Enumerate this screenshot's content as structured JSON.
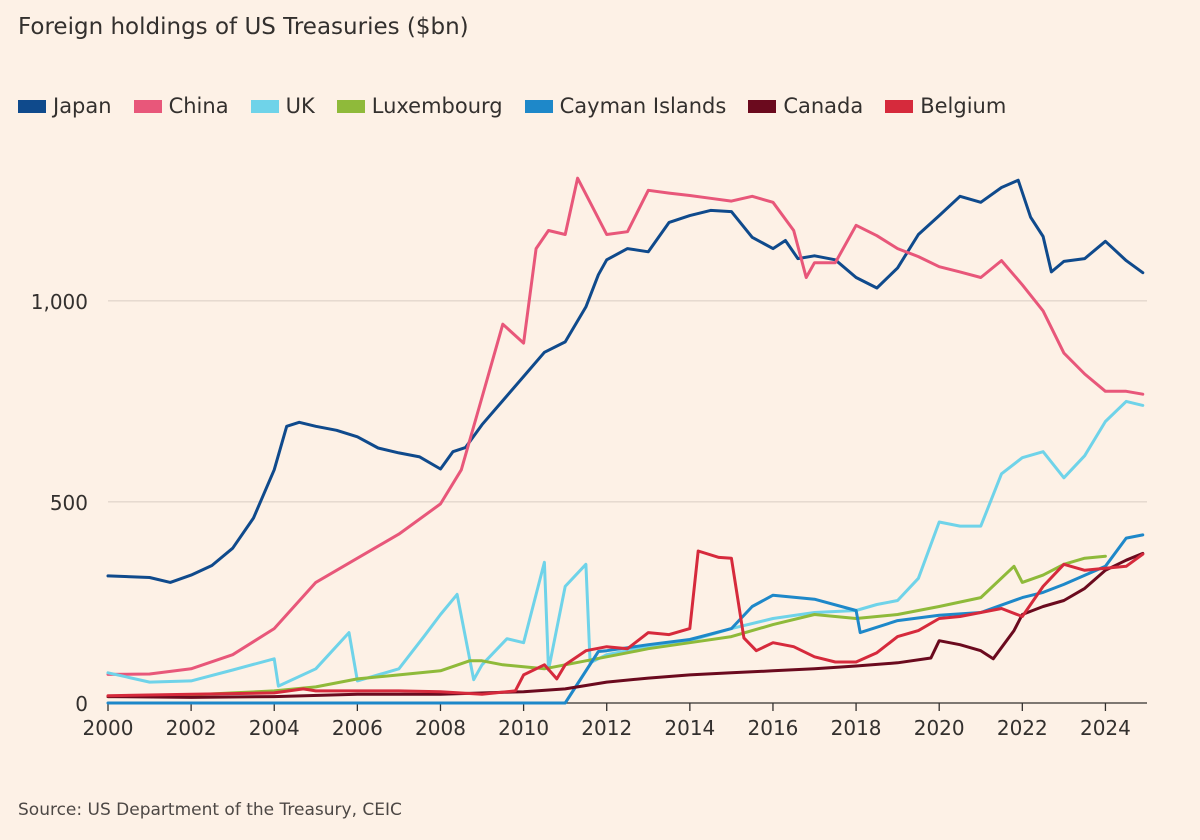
{
  "title": "Foreign holdings of US Treasuries ($bn)",
  "source": "Source: US Department of the Treasury, CEIC",
  "chart_data": {
    "type": "line",
    "title": "Foreign holdings of US Treasuries ($bn)",
    "xlabel": "",
    "ylabel": "",
    "xlim": [
      2000,
      2025
    ],
    "ylim": [
      0,
      1400
    ],
    "x_ticks": [
      "2000",
      "2002",
      "2004",
      "2006",
      "2008",
      "2010",
      "2012",
      "2014",
      "2016",
      "2018",
      "2020",
      "2022",
      "2024"
    ],
    "y_ticks": [
      "0",
      "500",
      "1,000"
    ],
    "grid": true,
    "legend_position": "top-left",
    "series": [
      {
        "name": "Japan",
        "color": "#0f4a8c",
        "x": [
          2000,
          2001,
          2001.5,
          2002,
          2002.5,
          2003,
          2003.5,
          2004,
          2004.3,
          2004.6,
          2005,
          2005.5,
          2006,
          2006.5,
          2007,
          2007.5,
          2008,
          2008.3,
          2008.6,
          2009,
          2009.5,
          2010,
          2010.5,
          2011,
          2011.5,
          2011.8,
          2012,
          2012.5,
          2013,
          2013.5,
          2014,
          2014.5,
          2015,
          2015.5,
          2016,
          2016.3,
          2016.6,
          2017,
          2017.5,
          2018,
          2018.5,
          2019,
          2019.5,
          2020,
          2020.5,
          2021,
          2021.5,
          2021.9,
          2022.2,
          2022.5,
          2022.7,
          2023,
          2023.5,
          2024,
          2024.5,
          2024.9
        ],
        "values": [
          316,
          312,
          300,
          318,
          342,
          385,
          460,
          580,
          688,
          698,
          688,
          678,
          662,
          634,
          622,
          612,
          582,
          625,
          635,
          692,
          752,
          812,
          872,
          898,
          985,
          1065,
          1102,
          1130,
          1122,
          1195,
          1212,
          1225,
          1222,
          1158,
          1130,
          1150,
          1105,
          1112,
          1102,
          1058,
          1032,
          1082,
          1165,
          1212,
          1260,
          1245,
          1282,
          1300,
          1208,
          1160,
          1072,
          1098,
          1105,
          1148,
          1100,
          1070
        ]
      },
      {
        "name": "China",
        "color": "#e8577a",
        "x": [
          2000,
          2001,
          2002,
          2003,
          2004,
          2005,
          2006,
          2007,
          2008,
          2008.5,
          2009,
          2009.5,
          2010,
          2010.3,
          2010.6,
          2011,
          2011.3,
          2011.6,
          2012,
          2012.5,
          2013,
          2013.5,
          2014,
          2014.5,
          2015,
          2015.5,
          2016,
          2016.5,
          2016.8,
          2017,
          2017.5,
          2018,
          2018.5,
          2019,
          2019.5,
          2020,
          2020.5,
          2021,
          2021.5,
          2022,
          2022.5,
          2023,
          2023.5,
          2024,
          2024.5,
          2024.9
        ],
        "values": [
          71,
          72,
          85,
          120,
          185,
          300,
          360,
          420,
          495,
          580,
          760,
          942,
          895,
          1130,
          1175,
          1165,
          1305,
          1245,
          1165,
          1172,
          1275,
          1268,
          1262,
          1255,
          1248,
          1260,
          1245,
          1175,
          1058,
          1095,
          1095,
          1188,
          1162,
          1130,
          1110,
          1085,
          1072,
          1058,
          1100,
          1040,
          975,
          870,
          818,
          775,
          775,
          768
        ]
      },
      {
        "name": "UK",
        "color": "#6fd3e9",
        "x": [
          2000,
          2001,
          2002,
          2003,
          2004,
          2004.1,
          2005,
          2005.8,
          2006,
          2007,
          2007.6,
          2008,
          2008.4,
          2008.8,
          2009,
          2009.6,
          2010,
          2010.5,
          2010.6,
          2011,
          2011.5,
          2011.6,
          2012,
          2013,
          2014,
          2015,
          2016,
          2017,
          2018,
          2018.5,
          2019,
          2019.5,
          2020,
          2020.5,
          2021,
          2021.5,
          2022,
          2022.5,
          2023,
          2023.5,
          2024,
          2024.5,
          2024.9
        ],
        "values": [
          75,
          52,
          55,
          82,
          110,
          42,
          85,
          175,
          55,
          85,
          165,
          220,
          270,
          58,
          95,
          160,
          150,
          350,
          82,
          290,
          345,
          100,
          120,
          140,
          155,
          185,
          210,
          225,
          230,
          245,
          255,
          310,
          450,
          440,
          440,
          570,
          610,
          625,
          560,
          615,
          700,
          750,
          740
        ]
      },
      {
        "name": "Luxembourg",
        "color": "#8fba3a",
        "x": [
          2000,
          2001,
          2002,
          2003,
          2004,
          2005,
          2006,
          2007,
          2008,
          2008.7,
          2009,
          2009.5,
          2010,
          2010.5,
          2011,
          2012,
          2013,
          2014,
          2015,
          2016,
          2017,
          2018,
          2019,
          2020,
          2021,
          2021.8,
          2022,
          2022.5,
          2023,
          2023.5,
          2024
        ],
        "values": [
          16,
          18,
          20,
          25,
          30,
          40,
          60,
          70,
          80,
          105,
          105,
          95,
          90,
          85,
          95,
          115,
          135,
          150,
          165,
          195,
          220,
          210,
          220,
          240,
          262,
          340,
          300,
          318,
          345,
          360,
          365
        ]
      },
      {
        "name": "Cayman Islands",
        "color": "#1e88c9",
        "x": [
          2000,
          2006,
          2008,
          2010,
          2011,
          2011.8,
          2012,
          2013,
          2014,
          2015,
          2015.5,
          2016,
          2017,
          2018,
          2018.1,
          2019,
          2020,
          2021,
          2022,
          2022.5,
          2023,
          2024,
          2024.5,
          2024.9
        ],
        "values": [
          0,
          0,
          0,
          0,
          0,
          128,
          130,
          145,
          158,
          185,
          240,
          268,
          258,
          230,
          175,
          205,
          218,
          225,
          262,
          275,
          295,
          340,
          410,
          418
        ]
      },
      {
        "name": "Canada",
        "color": "#6b0a1e",
        "x": [
          2000,
          2002,
          2004,
          2006,
          2008,
          2010,
          2011,
          2012,
          2013,
          2014,
          2015,
          2016,
          2017,
          2018,
          2019,
          2019.8,
          2020,
          2020.5,
          2021,
          2021.3,
          2021.8,
          2022,
          2022.5,
          2023,
          2023.5,
          2024,
          2024.5,
          2024.9
        ],
        "values": [
          16,
          14,
          16,
          22,
          22,
          28,
          35,
          52,
          62,
          70,
          75,
          80,
          85,
          92,
          100,
          112,
          155,
          145,
          130,
          110,
          180,
          220,
          240,
          255,
          285,
          330,
          355,
          372
        ]
      },
      {
        "name": "Belgium",
        "color": "#d62a3c",
        "x": [
          2000,
          2002,
          2004,
          2004.7,
          2005,
          2006,
          2007,
          2008,
          2009,
          2009.8,
          2010,
          2010.5,
          2010.8,
          2011,
          2011.5,
          2012,
          2012.5,
          2013,
          2013.5,
          2014,
          2014.2,
          2014.7,
          2015,
          2015.3,
          2015.6,
          2016,
          2016.5,
          2017,
          2017.5,
          2018,
          2018.5,
          2019,
          2019.5,
          2020,
          2020.5,
          2021,
          2021.5,
          2022,
          2022.5,
          2023,
          2023.5,
          2024,
          2024.5,
          2024.9
        ],
        "values": [
          18,
          22,
          25,
          35,
          30,
          30,
          30,
          28,
          22,
          30,
          70,
          95,
          60,
          95,
          130,
          140,
          135,
          175,
          170,
          185,
          378,
          362,
          360,
          162,
          130,
          150,
          140,
          115,
          102,
          102,
          125,
          165,
          180,
          210,
          215,
          225,
          235,
          215,
          290,
          345,
          330,
          335,
          340,
          370
        ]
      }
    ]
  }
}
